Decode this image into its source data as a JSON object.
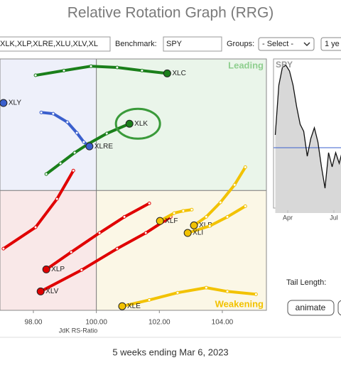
{
  "header": {
    "title": "Relative Rotation Graph (RRG)"
  },
  "controls": {
    "symbols": "XLK,XLP,XLRE,XLU,XLV,XL",
    "benchmark_label": "Benchmark:",
    "benchmark": "SPY",
    "groups_label": "Groups:",
    "groups": "- Select -",
    "period": "1 ye"
  },
  "rrg": {
    "type": "scatter",
    "x_label": "JdK RS-Ratio",
    "xlim": [
      96.94,
      105.4
    ],
    "ylim": [
      96.19,
      104.18
    ],
    "center": 100,
    "xticks": [
      {
        "value": 98,
        "label": "98.00"
      },
      {
        "value": 100,
        "label": "100.00"
      },
      {
        "value": 102,
        "label": "102.00"
      },
      {
        "value": 104,
        "label": "104.00"
      }
    ],
    "quadrants": {
      "leading": "Leading",
      "weakening": "Weakening"
    },
    "series": [
      {
        "name": "XLC",
        "color": "#1a7f1a",
        "x": [
          98.07,
          98.97,
          99.83,
          100.66,
          101.45,
          102.25
        ],
        "y": [
          103.66,
          103.81,
          103.95,
          103.91,
          103.81,
          103.72
        ]
      },
      {
        "name": "XLK",
        "color": "#1a7f1a",
        "x": [
          98.41,
          98.86,
          99.31,
          99.76,
          100.33,
          101.05
        ],
        "y": [
          100.52,
          100.86,
          101.2,
          101.49,
          101.81,
          102.12
        ]
      },
      {
        "name": "XLY",
        "color": "#3a5fcd",
        "x": [
          97.05
        ],
        "y": [
          102.78
        ]
      },
      {
        "name": "XLRE",
        "color": "#3a5fcd",
        "x": [
          98.25,
          98.63,
          99.08,
          99.38,
          99.6,
          99.78
        ],
        "y": [
          102.48,
          102.44,
          102.17,
          101.83,
          101.54,
          101.4
        ]
      },
      {
        "color": "#e00000",
        "x": [
          99.27,
          98.75,
          98.07,
          97.05
        ],
        "y": [
          100.63,
          99.73,
          98.83,
          98.15
        ]
      },
      {
        "name": "XLP",
        "color": "#e00000",
        "x": [
          101.68,
          100.89,
          100.1,
          99.2,
          98.41
        ],
        "y": [
          99.59,
          99.16,
          98.65,
          98.04,
          97.49
        ]
      },
      {
        "name": "XLV",
        "color": "#e00000",
        "x": [
          102.36,
          101.57,
          100.66,
          99.53,
          98.23
        ],
        "y": [
          99.16,
          98.65,
          98.15,
          97.47,
          96.79
        ]
      },
      {
        "name": "XLF",
        "color": "#f2c200",
        "x": [
          103.03,
          102.76,
          102.47,
          102.02
        ],
        "y": [
          99.39,
          99.35,
          99.28,
          99.03
        ]
      },
      {
        "name": "XLB",
        "color": "#f2c200",
        "x": [
          104.73,
          104.39,
          103.94,
          103.49,
          103.1
        ],
        "y": [
          100.74,
          100.18,
          99.62,
          99.16,
          98.89
        ]
      },
      {
        "name": "XLI",
        "color": "#f2c200",
        "x": [
          104.73,
          104.16,
          103.6,
          102.9
        ],
        "y": [
          99.5,
          99.16,
          98.87,
          98.65
        ]
      },
      {
        "name": "XLE",
        "color": "#f2c200",
        "x": [
          105.07,
          104.16,
          103.49,
          102.58,
          101.68,
          100.82
        ],
        "y": [
          96.7,
          96.79,
          96.91,
          96.75,
          96.52,
          96.32
        ]
      }
    ]
  },
  "mini": {
    "type": "line",
    "title": "SPY",
    "color": "#111111",
    "xlim": [
      -0.5,
      18.5
    ],
    "ylim": [
      0,
      217
    ],
    "reference": 92,
    "xticks": [
      {
        "value": 3.5,
        "label": "Apr"
      },
      {
        "value": 16.5,
        "label": "Jul"
      }
    ],
    "values": [
      110,
      180,
      205,
      208,
      200,
      180,
      150,
      125,
      115,
      80,
      105,
      120,
      100,
      65,
      35,
      85,
      65,
      85,
      70,
      90
    ]
  },
  "tail": {
    "label": "Tail Length:"
  },
  "buttons": [
    "animate"
  ],
  "footer": "5 weeks ending Mar 6, 2023"
}
